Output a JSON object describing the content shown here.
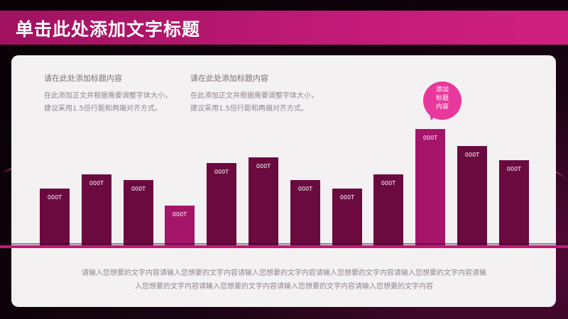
{
  "title": "单击此处添加文字标题",
  "text_blocks": [
    {
      "heading": "请在此处添加标题内容",
      "lines": [
        "在此添加正文并根据需要调整字体大小，",
        "建议采用1.5倍行距和两端对齐方式。"
      ]
    },
    {
      "heading": "请在此处添加标题内容",
      "lines": [
        "在此添加正文并根据需要调整字体大小，",
        "建议采用1.5倍行距和两端对齐方式。"
      ]
    }
  ],
  "callout": {
    "lines": [
      "添加",
      "标题",
      "内容"
    ]
  },
  "colors": {
    "accent": "#c21a78",
    "bar": "#6b0a3f",
    "bar_highlight": "#a4156a",
    "callout": "#e8389b",
    "panel": "#f4f1f3"
  },
  "chart_data": {
    "type": "bar",
    "categories": [
      "",
      "",
      "",
      "",
      "",
      "",
      "",
      "",
      "",
      "",
      "",
      ""
    ],
    "values": [
      1,
      1.25,
      1.15,
      0.7,
      1.45,
      1.55,
      1.15,
      1,
      1.25,
      2.05,
      1.75,
      1.5
    ],
    "highlighted": [
      false,
      false,
      false,
      true,
      false,
      false,
      false,
      false,
      false,
      true,
      false,
      false
    ],
    "data_labels": [
      "000T",
      "000T",
      "000T",
      "000T",
      "000T",
      "000T",
      "000T",
      "000T",
      "000T",
      "000T",
      "000T",
      "000T"
    ]
  },
  "bottom_text": {
    "lines": [
      "请输入您想要的文字内容请输入您想要的文字内容请输入您想要的文字内容请输入您想要的文字内容请输入您想要的文字内容请输",
      "入您想要的文字内容请输入您想要的文字内容请输入您想要的文字内容请输入您想要的文字内容"
    ]
  }
}
